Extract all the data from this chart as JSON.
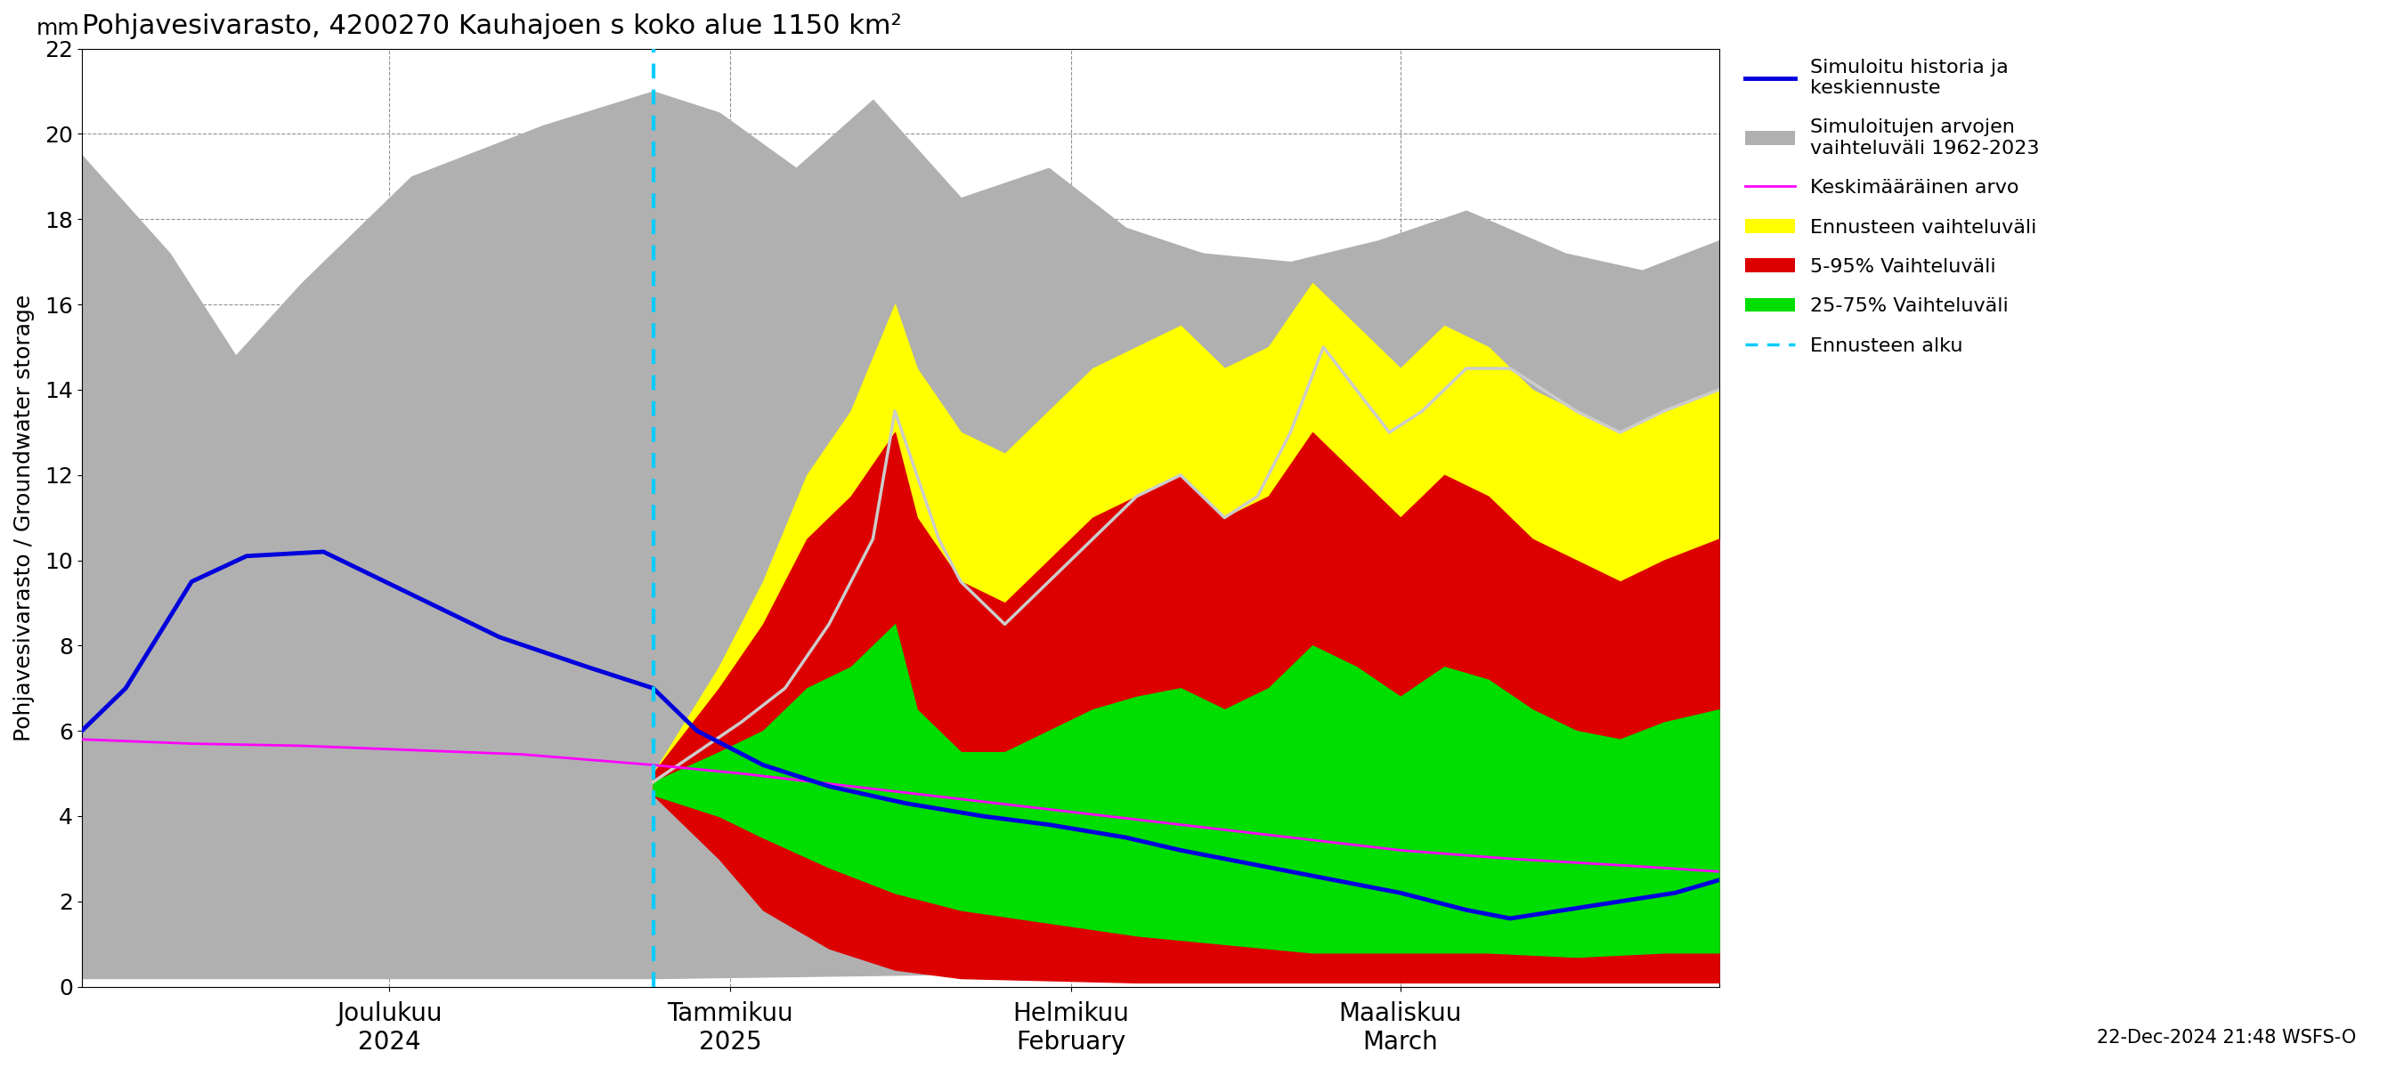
{
  "title": "Pohjavesivarasto, 4200270 Kauhajoen s koko alue 1150 km²",
  "ylabel_fi": "Pohjavesivarasto / Groundwater storage",
  "ylabel_mm": "mm",
  "timestamp": "22-Dec-2024 21:48 WSFS-O",
  "colors": {
    "gray_fill": "#b0b0b0",
    "blue_line": "#0000dd",
    "magenta_line": "#ff00ff",
    "yellow_fill": "#ffff00",
    "red_fill": "#dd0000",
    "green_fill": "#00dd00",
    "cyan_dashed": "#00ccff",
    "white_line": "#cccccc",
    "background": "#ffffff",
    "grid": "#888888"
  },
  "gray_top_pts": [
    [
      0,
      19.5
    ],
    [
      8,
      17.2
    ],
    [
      14,
      14.8
    ],
    [
      20,
      16.5
    ],
    [
      30,
      19.0
    ],
    [
      42,
      20.2
    ],
    [
      52,
      21.0
    ],
    [
      58,
      20.5
    ],
    [
      65,
      19.2
    ],
    [
      72,
      20.8
    ],
    [
      80,
      18.5
    ],
    [
      88,
      19.2
    ],
    [
      95,
      17.8
    ],
    [
      102,
      17.2
    ],
    [
      110,
      17.0
    ],
    [
      118,
      17.5
    ],
    [
      126,
      18.2
    ],
    [
      135,
      17.2
    ],
    [
      142,
      16.8
    ],
    [
      149,
      17.5
    ]
  ],
  "gray_bot_pts": [
    [
      0,
      0.2
    ],
    [
      20,
      0.2
    ],
    [
      52,
      0.2
    ],
    [
      80,
      0.3
    ],
    [
      100,
      0.3
    ],
    [
      120,
      0.3
    ],
    [
      149,
      0.4
    ]
  ],
  "blue_pts": [
    [
      0,
      6.0
    ],
    [
      4,
      7.0
    ],
    [
      10,
      9.5
    ],
    [
      15,
      10.1
    ],
    [
      22,
      10.2
    ],
    [
      30,
      9.2
    ],
    [
      38,
      8.2
    ],
    [
      46,
      7.5
    ],
    [
      52,
      7.0
    ],
    [
      56,
      6.0
    ],
    [
      62,
      5.2
    ],
    [
      68,
      4.7
    ],
    [
      75,
      4.3
    ],
    [
      82,
      4.0
    ],
    [
      88,
      3.8
    ],
    [
      95,
      3.5
    ],
    [
      100,
      3.2
    ],
    [
      108,
      2.8
    ],
    [
      114,
      2.5
    ],
    [
      120,
      2.2
    ],
    [
      126,
      1.8
    ],
    [
      130,
      1.6
    ],
    [
      135,
      1.8
    ],
    [
      140,
      2.0
    ],
    [
      145,
      2.2
    ],
    [
      149,
      2.5
    ]
  ],
  "magenta_pts": [
    [
      0,
      5.8
    ],
    [
      10,
      5.7
    ],
    [
      20,
      5.65
    ],
    [
      30,
      5.55
    ],
    [
      40,
      5.45
    ],
    [
      52,
      5.2
    ],
    [
      60,
      5.0
    ],
    [
      70,
      4.7
    ],
    [
      80,
      4.4
    ],
    [
      90,
      4.1
    ],
    [
      100,
      3.8
    ],
    [
      110,
      3.5
    ],
    [
      120,
      3.2
    ],
    [
      130,
      3.0
    ],
    [
      140,
      2.85
    ],
    [
      149,
      2.7
    ]
  ],
  "fc_start": 52,
  "yellow_top_pts": [
    [
      52,
      5.0
    ],
    [
      58,
      7.5
    ],
    [
      62,
      9.5
    ],
    [
      66,
      12.0
    ],
    [
      70,
      13.5
    ],
    [
      74,
      16.0
    ],
    [
      76,
      14.5
    ],
    [
      80,
      13.0
    ],
    [
      84,
      12.5
    ],
    [
      88,
      13.5
    ],
    [
      92,
      14.5
    ],
    [
      96,
      15.0
    ],
    [
      100,
      15.5
    ],
    [
      104,
      14.5
    ],
    [
      108,
      15.0
    ],
    [
      112,
      16.5
    ],
    [
      116,
      15.5
    ],
    [
      120,
      14.5
    ],
    [
      124,
      15.5
    ],
    [
      128,
      15.0
    ],
    [
      132,
      14.0
    ],
    [
      136,
      13.5
    ],
    [
      140,
      13.0
    ],
    [
      144,
      13.5
    ],
    [
      149,
      14.0
    ]
  ],
  "yellow_bot_pts": [
    [
      52,
      4.5
    ],
    [
      58,
      3.5
    ],
    [
      62,
      2.5
    ],
    [
      68,
      1.5
    ],
    [
      74,
      0.8
    ],
    [
      80,
      0.5
    ],
    [
      88,
      0.3
    ],
    [
      96,
      0.2
    ],
    [
      104,
      0.15
    ],
    [
      112,
      0.15
    ],
    [
      120,
      0.15
    ],
    [
      128,
      0.15
    ],
    [
      136,
      0.15
    ],
    [
      144,
      0.2
    ],
    [
      149,
      0.2
    ]
  ],
  "red_top_pts": [
    [
      52,
      5.0
    ],
    [
      58,
      7.0
    ],
    [
      62,
      8.5
    ],
    [
      66,
      10.5
    ],
    [
      70,
      11.5
    ],
    [
      74,
      13.0
    ],
    [
      76,
      11.0
    ],
    [
      80,
      9.5
    ],
    [
      84,
      9.0
    ],
    [
      88,
      10.0
    ],
    [
      92,
      11.0
    ],
    [
      96,
      11.5
    ],
    [
      100,
      12.0
    ],
    [
      104,
      11.0
    ],
    [
      108,
      11.5
    ],
    [
      112,
      13.0
    ],
    [
      116,
      12.0
    ],
    [
      120,
      11.0
    ],
    [
      124,
      12.0
    ],
    [
      128,
      11.5
    ],
    [
      132,
      10.5
    ],
    [
      136,
      10.0
    ],
    [
      140,
      9.5
    ],
    [
      144,
      10.0
    ],
    [
      149,
      10.5
    ]
  ],
  "red_bot_pts": [
    [
      52,
      4.5
    ],
    [
      58,
      3.0
    ],
    [
      62,
      1.8
    ],
    [
      68,
      0.9
    ],
    [
      74,
      0.4
    ],
    [
      80,
      0.2
    ],
    [
      88,
      0.15
    ],
    [
      96,
      0.1
    ],
    [
      104,
      0.1
    ],
    [
      112,
      0.1
    ],
    [
      120,
      0.1
    ],
    [
      128,
      0.1
    ],
    [
      136,
      0.1
    ],
    [
      144,
      0.1
    ],
    [
      149,
      0.1
    ]
  ],
  "green_top_pts": [
    [
      52,
      4.8
    ],
    [
      58,
      5.5
    ],
    [
      62,
      6.0
    ],
    [
      66,
      7.0
    ],
    [
      70,
      7.5
    ],
    [
      74,
      8.5
    ],
    [
      76,
      6.5
    ],
    [
      80,
      5.5
    ],
    [
      84,
      5.5
    ],
    [
      88,
      6.0
    ],
    [
      92,
      6.5
    ],
    [
      96,
      6.8
    ],
    [
      100,
      7.0
    ],
    [
      104,
      6.5
    ],
    [
      108,
      7.0
    ],
    [
      112,
      8.0
    ],
    [
      116,
      7.5
    ],
    [
      120,
      6.8
    ],
    [
      124,
      7.5
    ],
    [
      128,
      7.2
    ],
    [
      132,
      6.5
    ],
    [
      136,
      6.0
    ],
    [
      140,
      5.8
    ],
    [
      144,
      6.2
    ],
    [
      149,
      6.5
    ]
  ],
  "green_bot_pts": [
    [
      52,
      4.5
    ],
    [
      58,
      4.0
    ],
    [
      62,
      3.5
    ],
    [
      68,
      2.8
    ],
    [
      74,
      2.2
    ],
    [
      80,
      1.8
    ],
    [
      88,
      1.5
    ],
    [
      96,
      1.2
    ],
    [
      104,
      1.0
    ],
    [
      112,
      0.8
    ],
    [
      120,
      0.8
    ],
    [
      128,
      0.8
    ],
    [
      136,
      0.7
    ],
    [
      144,
      0.8
    ],
    [
      149,
      0.8
    ]
  ],
  "white_line_pts": [
    [
      52,
      4.8
    ],
    [
      56,
      5.5
    ],
    [
      60,
      6.2
    ],
    [
      64,
      7.0
    ],
    [
      68,
      8.5
    ],
    [
      72,
      10.5
    ],
    [
      74,
      13.5
    ],
    [
      76,
      12.0
    ],
    [
      78,
      10.5
    ],
    [
      80,
      9.5
    ],
    [
      84,
      8.5
    ],
    [
      88,
      9.5
    ],
    [
      92,
      10.5
    ],
    [
      96,
      11.5
    ],
    [
      100,
      12.0
    ],
    [
      104,
      11.0
    ],
    [
      107,
      11.5
    ],
    [
      110,
      13.0
    ],
    [
      113,
      15.0
    ],
    [
      116,
      14.0
    ],
    [
      119,
      13.0
    ],
    [
      122,
      13.5
    ],
    [
      126,
      14.5
    ],
    [
      130,
      14.5
    ],
    [
      133,
      14.0
    ],
    [
      136,
      13.5
    ],
    [
      140,
      13.0
    ],
    [
      144,
      13.5
    ],
    [
      149,
      14.0
    ]
  ],
  "xtick_pos": [
    28,
    59,
    90,
    120
  ],
  "xtick_labels": [
    "Joulukuu\n2024",
    "Tammikuu\n2025",
    "Helmikuu\nFebruary",
    "Maaliskuu\nMarch"
  ],
  "yticks": [
    0,
    2,
    4,
    6,
    8,
    10,
    12,
    14,
    16,
    18,
    20,
    22
  ],
  "ylim": [
    0,
    22
  ],
  "xlim": [
    0,
    149
  ]
}
